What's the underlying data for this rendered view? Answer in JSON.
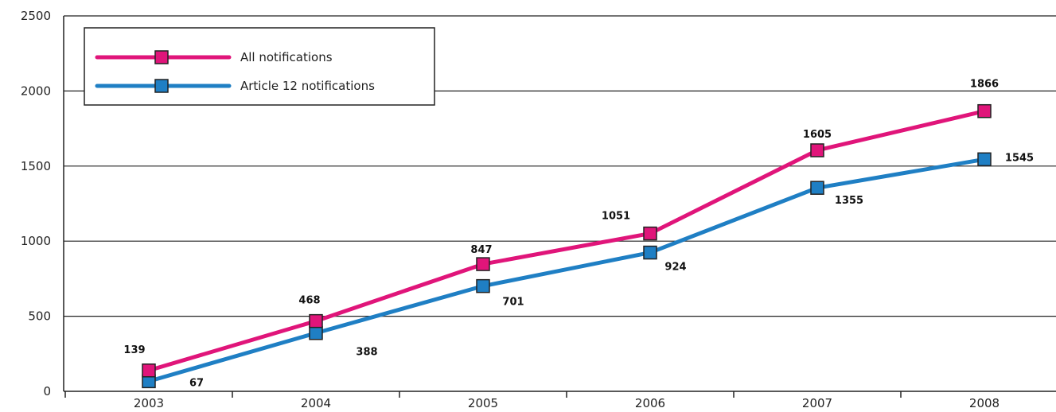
{
  "chart_data": {
    "type": "line",
    "categories": [
      "2003",
      "2004",
      "2005",
      "2006",
      "2007",
      "2008"
    ],
    "series": [
      {
        "name": "All notifications",
        "color": "#e0157a",
        "values": [
          139,
          468,
          847,
          1051,
          1605,
          1866
        ]
      },
      {
        "name": "Article 12 notifications",
        "color": "#1f7fc4",
        "values": [
          67,
          388,
          701,
          924,
          1355,
          1545
        ]
      }
    ],
    "ylim": [
      0,
      2500
    ],
    "yticks": [
      "0",
      "500",
      "1000",
      "1500",
      "2000",
      "2500"
    ],
    "grid": true,
    "legend": "top-left",
    "data_labels": [
      [
        "139",
        "468",
        "847",
        "1051",
        "1605",
        "1866"
      ],
      [
        "67",
        "388",
        "701",
        "924",
        "1355",
        "1545"
      ]
    ]
  }
}
